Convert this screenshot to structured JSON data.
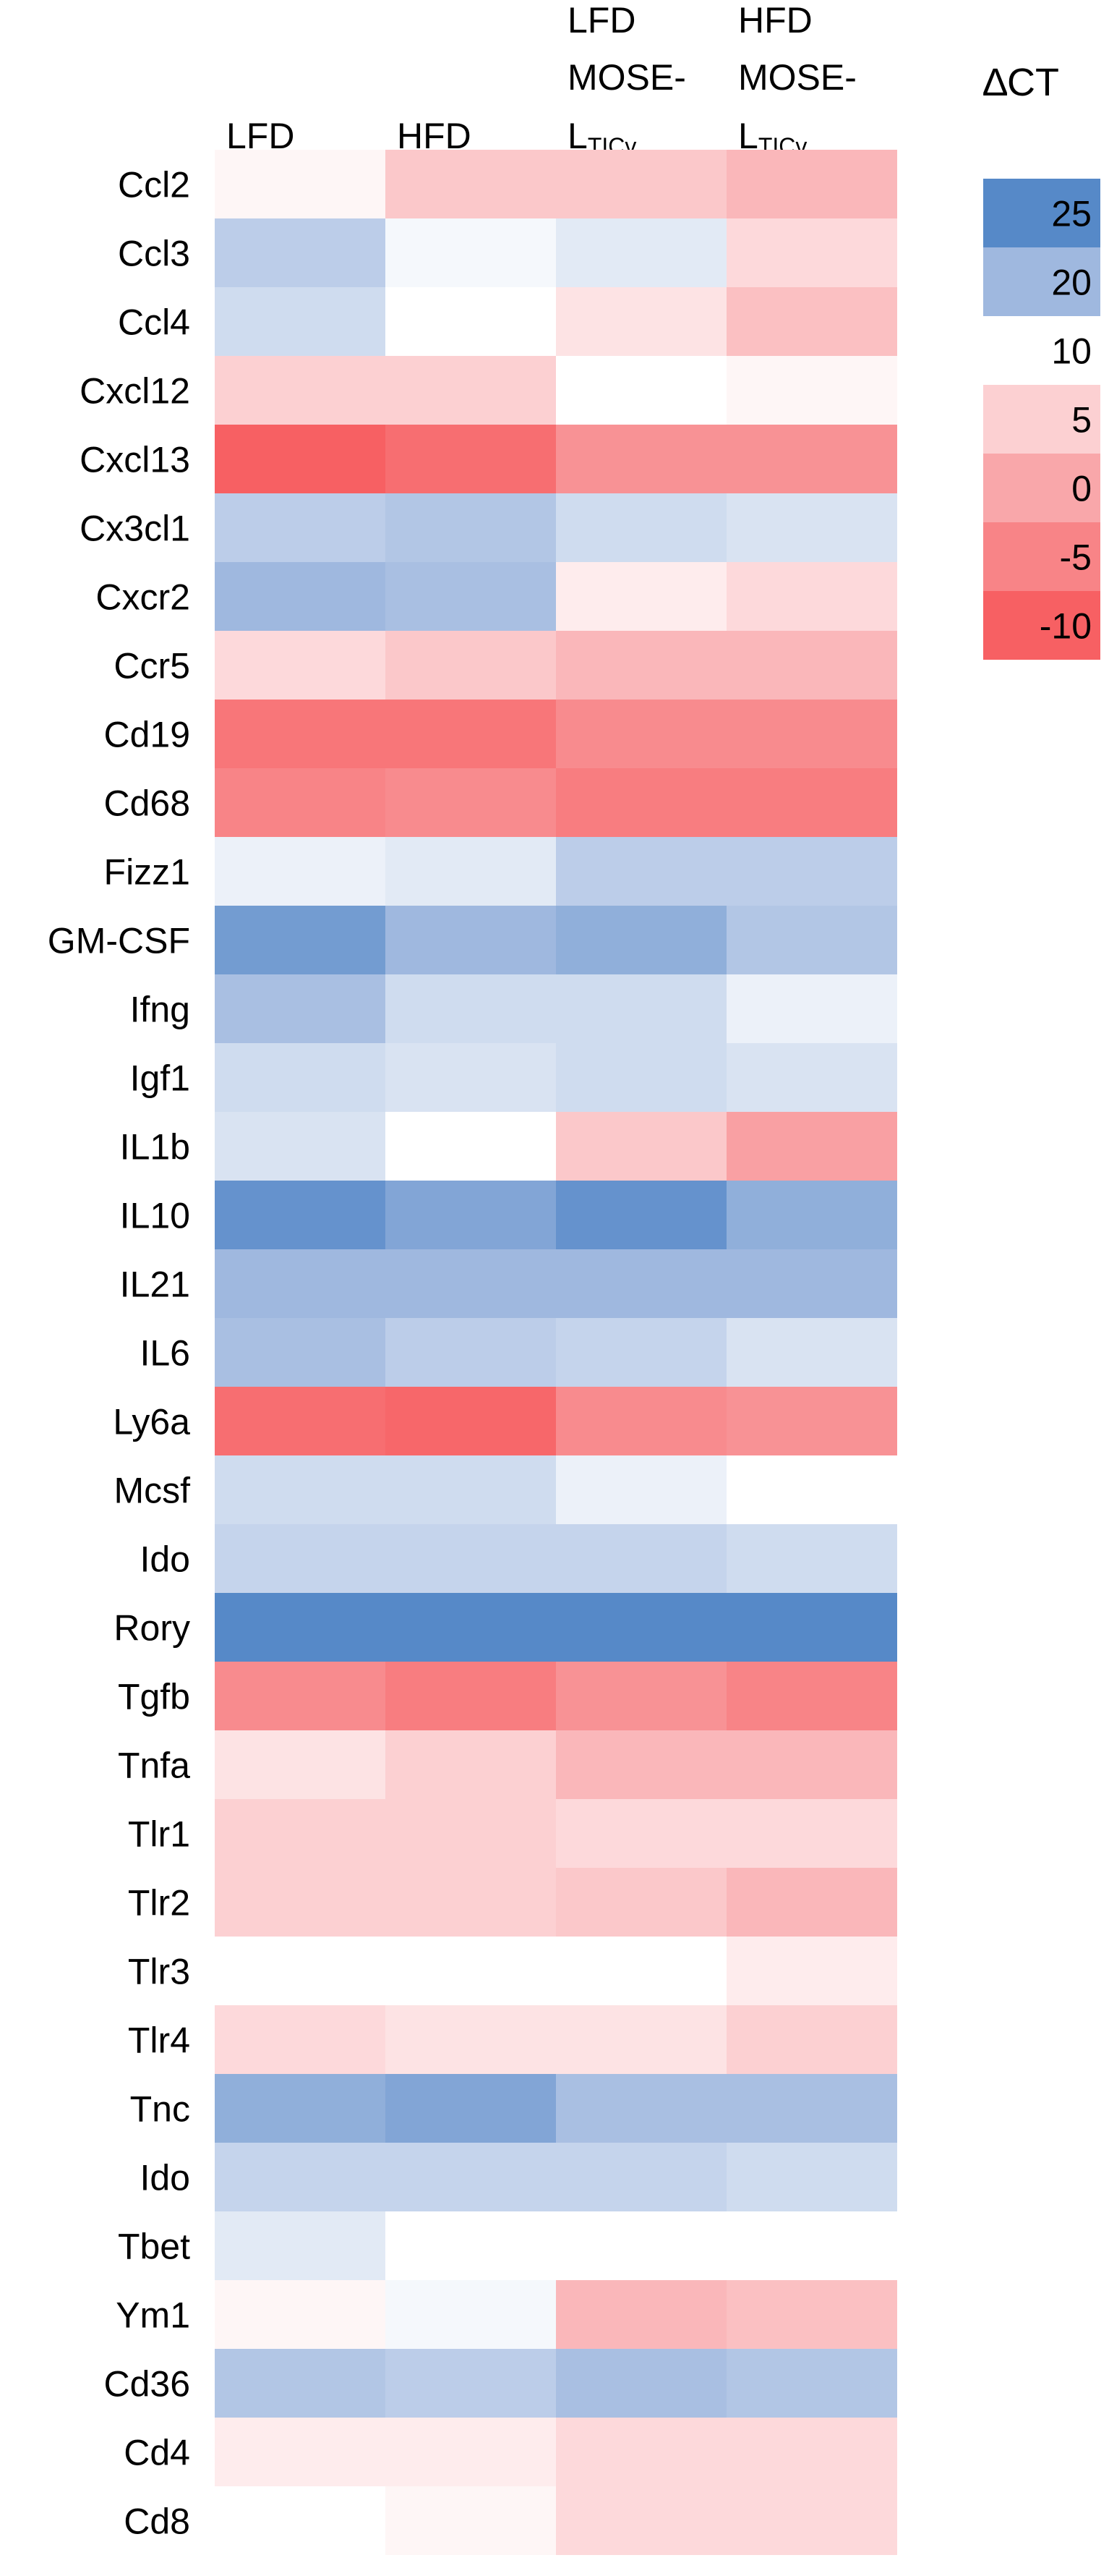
{
  "chart_data": {
    "type": "heatmap",
    "legend_title": "∆CT",
    "columns": [
      {
        "line1": "",
        "line2": "",
        "line3": "LFD",
        "sub": ""
      },
      {
        "line1": "",
        "line2": "",
        "line3": "HFD",
        "sub": ""
      },
      {
        "line1": "LFD",
        "line2": "MOSE-",
        "line3": "L",
        "sub": "TICv"
      },
      {
        "line1": "HFD",
        "line2": "MOSE-",
        "line3": "L",
        "sub": "TICv"
      }
    ],
    "rows": [
      "Ccl2",
      "Ccl3",
      "Ccl4",
      "Cxcl12",
      "Cxcl13",
      "Cx3cl1",
      "Cxcr2",
      "Ccr5",
      "Cd19",
      "Cd68",
      "Fizz1",
      "GM-CSF",
      "Ifng",
      "Igf1",
      "IL1b",
      "IL10",
      "IL21",
      "IL6",
      "Ly6a",
      "Mcsf",
      "Ido",
      "Rory",
      "Tgfb",
      "Tnfa",
      "Tlr1",
      "Tlr2",
      "Tlr3",
      "Tlr4",
      "Tnc",
      "Ido",
      "Tbet",
      "Ym1",
      "Cd36",
      "Cd4",
      "Cd8"
    ],
    "values": [
      [
        9,
        4,
        4,
        2
      ],
      [
        17,
        11,
        13,
        6
      ],
      [
        15,
        10,
        7,
        3
      ],
      [
        5,
        5,
        10,
        9
      ],
      [
        -10,
        -8,
        -3,
        -3
      ],
      [
        17,
        18,
        15,
        14
      ],
      [
        20,
        19,
        8,
        6
      ],
      [
        6,
        4,
        2,
        2
      ],
      [
        -7,
        -7,
        -4,
        -4
      ],
      [
        -5,
        -4,
        -6,
        -6
      ],
      [
        12,
        13,
        17,
        17
      ],
      [
        23,
        20,
        21,
        18
      ],
      [
        19,
        15,
        15,
        12
      ],
      [
        15,
        14,
        15,
        14
      ],
      [
        14,
        10,
        4,
        -1
      ],
      [
        24,
        22,
        24,
        21
      ],
      [
        20,
        20,
        20,
        20
      ],
      [
        19,
        17,
        16,
        14
      ],
      [
        -8,
        -9,
        -4,
        -3
      ],
      [
        15,
        15,
        12,
        10
      ],
      [
        16,
        16,
        16,
        15
      ],
      [
        27,
        26,
        26,
        26
      ],
      [
        -4,
        -6,
        -3,
        -5
      ],
      [
        7,
        5,
        2,
        2
      ],
      [
        5,
        5,
        6,
        6
      ],
      [
        5,
        5,
        4,
        2
      ],
      [
        10,
        10,
        10,
        8
      ],
      [
        6,
        7,
        7,
        5
      ],
      [
        21,
        22,
        19,
        19
      ],
      [
        16,
        16,
        16,
        15
      ],
      [
        13,
        10,
        10,
        10
      ],
      [
        9,
        11,
        2,
        3
      ],
      [
        18,
        17,
        19,
        18
      ],
      [
        8,
        8,
        6,
        6
      ],
      [
        10,
        9,
        6,
        6
      ]
    ],
    "scale": [
      {
        "label": "25",
        "value": 25,
        "color": "#5689c8"
      },
      {
        "label": "20",
        "value": 20,
        "color": "#9fb8df"
      },
      {
        "label": "10",
        "value": 10,
        "color": "#ffffff"
      },
      {
        "label": "5",
        "value": 5,
        "color": "#fcd0d2"
      },
      {
        "label": "0",
        "value": 0,
        "color": "#f9a7aa"
      },
      {
        "label": "-5",
        "value": -5,
        "color": "#f88487"
      },
      {
        "label": "-10",
        "value": -10,
        "color": "#f76063"
      }
    ]
  }
}
